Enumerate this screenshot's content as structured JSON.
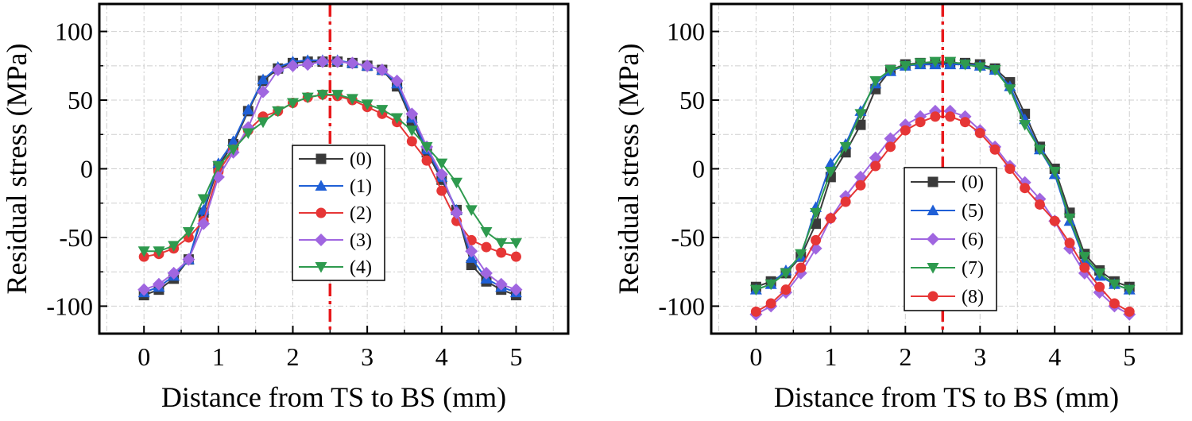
{
  "chart_data": [
    {
      "type": "line",
      "xlabel": "Distance from TS to BS  (mm)",
      "ylabel": "Residual stress (MPa)",
      "xlim": [
        -0.6,
        5.7
      ],
      "ylim": [
        -120,
        120
      ],
      "xticks": [
        0,
        1,
        2,
        3,
        4,
        5
      ],
      "yticks": [
        -100,
        -50,
        0,
        50,
        100
      ],
      "grid": true,
      "reference_line_x": 2.5,
      "reference_line_color": "#e8191c",
      "legend_position": "center",
      "x": [
        0,
        0.2,
        0.4,
        0.6,
        0.8,
        1.0,
        1.2,
        1.4,
        1.6,
        1.8,
        2.0,
        2.2,
        2.4,
        2.6,
        2.8,
        3.0,
        3.2,
        3.4,
        3.6,
        3.8,
        4.0,
        4.2,
        4.4,
        4.6,
        4.8,
        5.0
      ],
      "series": [
        {
          "name": "(0)",
          "color": "#3a3a3a",
          "marker": "square",
          "values": [
            -92,
            -88,
            -80,
            -66,
            -32,
            2,
            18,
            42,
            64,
            73,
            77,
            78,
            78,
            78,
            77,
            75,
            72,
            60,
            35,
            12,
            -8,
            -30,
            -70,
            -82,
            -88,
            -92
          ]
        },
        {
          "name": "(1)",
          "color": "#1f5fd6",
          "marker": "triangle-up",
          "values": [
            -90,
            -86,
            -78,
            -66,
            -30,
            4,
            20,
            43,
            65,
            74,
            78,
            79,
            79,
            79,
            77,
            75,
            72,
            62,
            37,
            14,
            -6,
            -30,
            -65,
            -80,
            -86,
            -90
          ]
        },
        {
          "name": "(2)",
          "color": "#e63636",
          "marker": "circle",
          "values": [
            -64,
            -62,
            -58,
            -50,
            -38,
            -2,
            14,
            28,
            38,
            42,
            48,
            52,
            54,
            53,
            50,
            45,
            40,
            34,
            20,
            6,
            -16,
            -38,
            -52,
            -57,
            -61,
            -64
          ]
        },
        {
          "name": "(3)",
          "color": "#a066e0",
          "marker": "diamond",
          "values": [
            -88,
            -84,
            -76,
            -66,
            -40,
            -6,
            12,
            30,
            56,
            72,
            75,
            76,
            78,
            78,
            77,
            75,
            72,
            64,
            40,
            16,
            -4,
            -32,
            -60,
            -76,
            -84,
            -88
          ]
        },
        {
          "name": "(4)",
          "color": "#2e9a4e",
          "marker": "triangle-down",
          "values": [
            -60,
            -60,
            -56,
            -46,
            -22,
            2,
            14,
            26,
            34,
            42,
            48,
            52,
            54,
            54,
            51,
            47,
            43,
            37,
            28,
            16,
            4,
            -10,
            -30,
            -46,
            -54,
            -54
          ]
        }
      ]
    },
    {
      "type": "line",
      "xlabel": "Distance from TS to BS (mm)",
      "ylabel": "Residual stress (MPa)",
      "xlim": [
        -0.6,
        5.7
      ],
      "ylim": [
        -120,
        120
      ],
      "xticks": [
        0,
        1,
        2,
        3,
        4,
        5
      ],
      "yticks": [
        -100,
        -50,
        0,
        50,
        100
      ],
      "grid": true,
      "reference_line_x": 2.5,
      "reference_line_color": "#e8191c",
      "legend_position": "center",
      "x": [
        0,
        0.2,
        0.4,
        0.6,
        0.8,
        1.0,
        1.2,
        1.4,
        1.6,
        1.8,
        2.0,
        2.2,
        2.4,
        2.6,
        2.8,
        3.0,
        3.2,
        3.4,
        3.6,
        3.8,
        4.0,
        4.2,
        4.4,
        4.6,
        4.8,
        5.0
      ],
      "series": [
        {
          "name": "(0)",
          "color": "#3a3a3a",
          "marker": "square",
          "values": [
            -86,
            -82,
            -76,
            -64,
            -40,
            -6,
            12,
            32,
            58,
            72,
            76,
            77,
            77,
            77,
            77,
            76,
            73,
            63,
            40,
            16,
            0,
            -32,
            -62,
            -74,
            -82,
            -86
          ]
        },
        {
          "name": "(5)",
          "color": "#1f5fd6",
          "marker": "triangle-up",
          "values": [
            -88,
            -84,
            -74,
            -64,
            -28,
            4,
            18,
            42,
            62,
            71,
            75,
            76,
            76,
            76,
            76,
            75,
            72,
            60,
            36,
            14,
            -4,
            -38,
            -66,
            -78,
            -84,
            -88
          ]
        },
        {
          "name": "(6)",
          "color": "#a066e0",
          "marker": "diamond",
          "values": [
            -106,
            -100,
            -90,
            -76,
            -58,
            -36,
            -20,
            -6,
            8,
            22,
            32,
            38,
            42,
            42,
            38,
            28,
            16,
            2,
            -10,
            -22,
            -38,
            -58,
            -76,
            -90,
            -100,
            -106
          ]
        },
        {
          "name": "(7)",
          "color": "#2e9a4e",
          "marker": "triangle-down",
          "values": [
            -88,
            -84,
            -76,
            -62,
            -32,
            -2,
            16,
            40,
            64,
            72,
            75,
            77,
            78,
            78,
            76,
            74,
            72,
            58,
            32,
            14,
            -2,
            -36,
            -64,
            -76,
            -84,
            -88
          ]
        },
        {
          "name": "(8)",
          "color": "#e63636",
          "marker": "circle",
          "values": [
            -104,
            -98,
            -88,
            -72,
            -52,
            -36,
            -24,
            -12,
            2,
            16,
            28,
            34,
            38,
            38,
            34,
            26,
            14,
            0,
            -14,
            -26,
            -38,
            -54,
            -72,
            -86,
            -98,
            -104
          ]
        }
      ]
    }
  ]
}
